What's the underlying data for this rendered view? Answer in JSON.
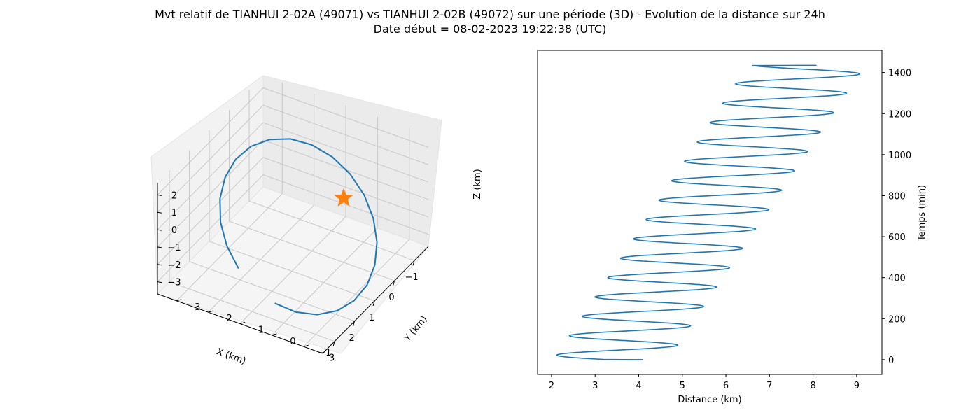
{
  "figure": {
    "title": "Mvt relatif de TIANHUI 2-02A (49071) vs TIANHUI 2-02B (49072) sur une période (3D) - Evolution de la distance sur 24h",
    "subtitle": "Date début = 08-02-2023 19:22:38 (UTC)"
  },
  "chart_data": [
    {
      "type": "line3d",
      "xlabel": "X (km)",
      "ylabel": "Y (km)",
      "zlabel": "Z (km)",
      "xlim": [
        -1.7,
        3.6
      ],
      "ylim": [
        -1.6,
        3.6
      ],
      "zlim": [
        -3.7,
        2.7
      ],
      "xticks": [
        -1,
        0,
        1,
        2,
        3
      ],
      "yticks": [
        -1,
        0,
        1,
        2,
        3
      ],
      "zticks": [
        -3,
        -2,
        -1,
        0,
        1,
        2
      ],
      "grid": true,
      "series_color": "#1f77b4",
      "marker": {
        "symbol": "star",
        "color": "#ff7f0e",
        "x": 0,
        "y": 0,
        "z": 0
      }
    },
    {
      "type": "line",
      "xlabel": "Distance (km)",
      "ylabel": "Temps (min)",
      "xlim": [
        1.68,
        9.58
      ],
      "ylim": [
        -72,
        1508
      ],
      "xticks": [
        2,
        3,
        4,
        5,
        6,
        7,
        8,
        9
      ],
      "yticks": [
        0,
        200,
        400,
        600,
        800,
        1000,
        1200,
        1400
      ],
      "yaxis_position": "right",
      "grid": false,
      "color": "#1f77b4",
      "oscillation": {
        "t_start": 0,
        "t_end": 1435,
        "period_min": 94.5,
        "start_distance": 4.1,
        "end_distance": 8.08,
        "first_min": 2.05,
        "last_min": 6.5,
        "first_max": 4.67,
        "last_max": 9.2
      }
    }
  ]
}
